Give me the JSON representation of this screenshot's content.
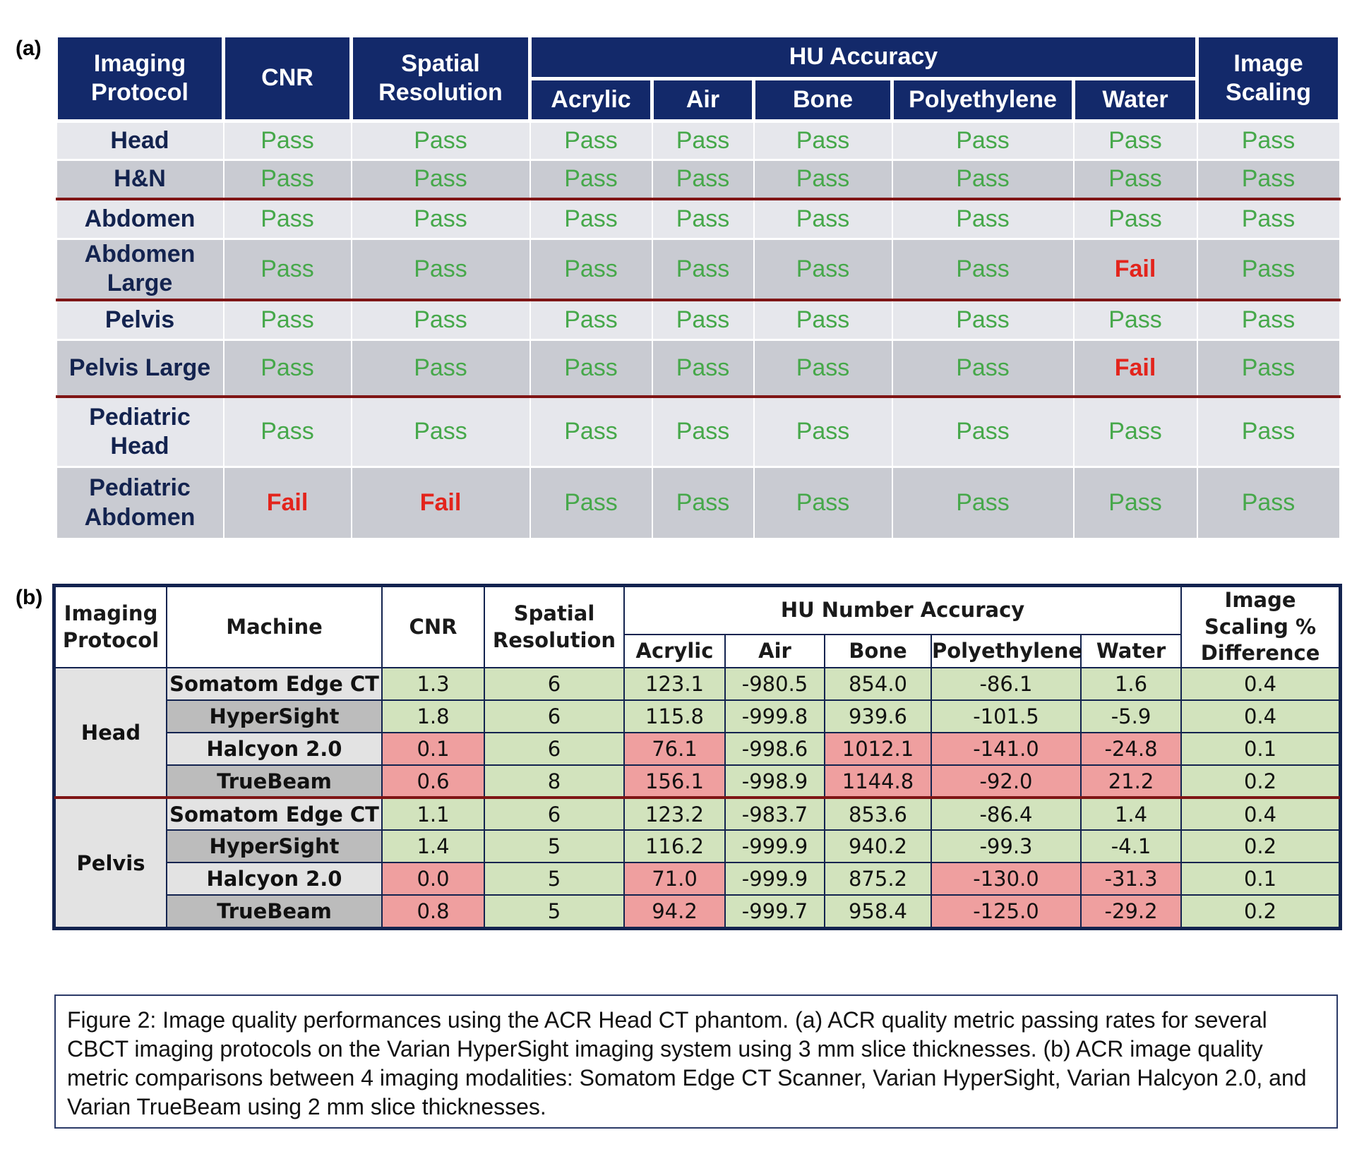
{
  "panel_a": {
    "label": "(a)",
    "headers": {
      "protocol": "Imaging Protocol",
      "cnr": "CNR",
      "spatial": "Spatial Resolution",
      "hu_group": "HU Accuracy",
      "hu_cols": [
        "Acrylic",
        "Air",
        "Bone",
        "Polyethylene",
        "Water"
      ],
      "scaling": "Image Scaling"
    },
    "rows": [
      {
        "protocol": "Head",
        "values": [
          "Pass",
          "Pass",
          "Pass",
          "Pass",
          "Pass",
          "Pass",
          "Pass",
          "Pass"
        ]
      },
      {
        "protocol": "H&N",
        "values": [
          "Pass",
          "Pass",
          "Pass",
          "Pass",
          "Pass",
          "Pass",
          "Pass",
          "Pass"
        ]
      },
      {
        "protocol": "Abdomen",
        "values": [
          "Pass",
          "Pass",
          "Pass",
          "Pass",
          "Pass",
          "Pass",
          "Pass",
          "Pass"
        ]
      },
      {
        "protocol": "Abdomen Large",
        "values": [
          "Pass",
          "Pass",
          "Pass",
          "Pass",
          "Pass",
          "Pass",
          "Fail",
          "Pass"
        ]
      },
      {
        "protocol": "Pelvis",
        "values": [
          "Pass",
          "Pass",
          "Pass",
          "Pass",
          "Pass",
          "Pass",
          "Pass",
          "Pass"
        ]
      },
      {
        "protocol": "Pelvis Large",
        "values": [
          "Pass",
          "Pass",
          "Pass",
          "Pass",
          "Pass",
          "Pass",
          "Fail",
          "Pass"
        ]
      },
      {
        "protocol": "Pediatric Head",
        "values": [
          "Pass",
          "Pass",
          "Pass",
          "Pass",
          "Pass",
          "Pass",
          "Pass",
          "Pass"
        ]
      },
      {
        "protocol": "Pediatric Abdomen",
        "values": [
          "Fail",
          "Fail",
          "Pass",
          "Pass",
          "Pass",
          "Pass",
          "Pass",
          "Pass"
        ]
      }
    ]
  },
  "panel_b": {
    "label": "(b)",
    "headers": {
      "protocol": "Imaging Protocol",
      "machine": "Machine",
      "cnr": "CNR",
      "spatial": "Spatial Resolution",
      "hu_group": "HU Number Accuracy",
      "hu_cols": [
        "Acrylic",
        "Air",
        "Bone",
        "Polyethylene",
        "Water"
      ],
      "scaling": "Image Scaling % Difference"
    },
    "groups": [
      {
        "protocol": "Head",
        "rows": [
          {
            "machine": "Somatom Edge CT",
            "values": [
              "1.3",
              "6",
              "123.1",
              "-980.5",
              "854.0",
              "-86.1",
              "1.6",
              "0.4"
            ],
            "status": [
              "pass",
              "pass",
              "pass",
              "pass",
              "pass",
              "pass",
              "pass",
              "pass"
            ]
          },
          {
            "machine": "HyperSight",
            "values": [
              "1.8",
              "6",
              "115.8",
              "-999.8",
              "939.6",
              "-101.5",
              "-5.9",
              "0.4"
            ],
            "status": [
              "pass",
              "pass",
              "pass",
              "pass",
              "pass",
              "pass",
              "pass",
              "pass"
            ]
          },
          {
            "machine": "Halcyon 2.0",
            "values": [
              "0.1",
              "6",
              "76.1",
              "-998.6",
              "1012.1",
              "-141.0",
              "-24.8",
              "0.1"
            ],
            "status": [
              "fail",
              "pass",
              "fail",
              "pass",
              "fail",
              "fail",
              "fail",
              "pass"
            ]
          },
          {
            "machine": "TrueBeam",
            "values": [
              "0.6",
              "8",
              "156.1",
              "-998.9",
              "1144.8",
              "-92.0",
              "21.2",
              "0.2"
            ],
            "status": [
              "fail",
              "pass",
              "fail",
              "pass",
              "fail",
              "fail",
              "fail",
              "pass"
            ]
          }
        ]
      },
      {
        "protocol": "Pelvis",
        "rows": [
          {
            "machine": "Somatom Edge CT",
            "values": [
              "1.1",
              "6",
              "123.2",
              "-983.7",
              "853.6",
              "-86.4",
              "1.4",
              "0.4"
            ],
            "status": [
              "pass",
              "pass",
              "pass",
              "pass",
              "pass",
              "pass",
              "pass",
              "pass"
            ]
          },
          {
            "machine": "HyperSight",
            "values": [
              "1.4",
              "5",
              "116.2",
              "-999.9",
              "940.2",
              "-99.3",
              "-4.1",
              "0.2"
            ],
            "status": [
              "pass",
              "pass",
              "pass",
              "pass",
              "pass",
              "pass",
              "pass",
              "pass"
            ]
          },
          {
            "machine": "Halcyon 2.0",
            "values": [
              "0.0",
              "5",
              "71.0",
              "-999.9",
              "875.2",
              "-130.0",
              "-31.3",
              "0.1"
            ],
            "status": [
              "fail",
              "pass",
              "fail",
              "pass",
              "pass",
              "fail",
              "fail",
              "pass"
            ]
          },
          {
            "machine": "TrueBeam",
            "values": [
              "0.8",
              "5",
              "94.2",
              "-999.7",
              "958.4",
              "-125.0",
              "-29.2",
              "0.2"
            ],
            "status": [
              "fail",
              "pass",
              "fail",
              "pass",
              "pass",
              "fail",
              "fail",
              "pass"
            ]
          }
        ]
      }
    ]
  },
  "caption": "Figure 2: Image quality performances using the ACR Head CT phantom. (a) ACR quality metric passing rates for several CBCT imaging protocols on the Varian HyperSight imaging system using 3 mm slice thicknesses. (b) ACR image quality metric comparisons between 4 imaging modalities: Somatom Edge CT Scanner, Varian HyperSight, Varian Halcyon 2.0, and Varian TrueBeam using 2 mm slice thicknesses.",
  "colors": {
    "header_navy": "#13296a",
    "pass_green": "#46a84a",
    "fail_red": "#e3241c",
    "separator": "#7f1515",
    "cell_green": "#d2e3bd",
    "cell_red": "#ef9f9f"
  }
}
